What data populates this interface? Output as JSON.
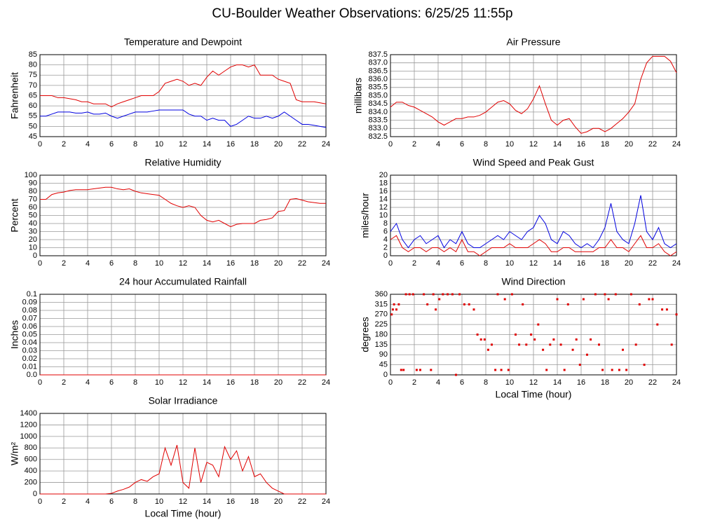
{
  "title": "CU-Boulder Weather Observations: 6/25/25 11:55p",
  "chart_data": [
    {
      "type": "line",
      "title": "Temperature and Dewpoint",
      "ylabel": "Fahrenheit",
      "x": [
        0,
        0.5,
        1,
        1.5,
        2,
        2.5,
        3,
        3.5,
        4,
        4.5,
        5,
        5.5,
        6,
        6.5,
        7,
        7.5,
        8,
        8.5,
        9,
        9.5,
        10,
        10.5,
        11,
        11.5,
        12,
        12.5,
        13,
        13.5,
        14,
        14.5,
        15,
        15.5,
        16,
        16.5,
        17,
        17.5,
        18,
        18.5,
        19,
        19.5,
        20,
        20.5,
        21,
        21.5,
        22,
        22.5,
        23,
        23.5,
        24
      ],
      "series": [
        {
          "color": "#e00000",
          "values": [
            65,
            65,
            65,
            64,
            64,
            63.5,
            63,
            62,
            62,
            61,
            61,
            61,
            59.5,
            61,
            62,
            63,
            64,
            65,
            65,
            65,
            67,
            71,
            72,
            73,
            72,
            70,
            71,
            70,
            74,
            77,
            75,
            77,
            79,
            80,
            80,
            79,
            80,
            75,
            75,
            75,
            73,
            72,
            71,
            63,
            62,
            62,
            62,
            61.5,
            61
          ]
        },
        {
          "color": "#0000e0",
          "values": [
            55,
            55,
            56,
            57,
            57,
            57,
            56.5,
            56.5,
            57,
            56,
            56,
            56.5,
            55,
            54,
            55,
            56,
            57,
            57,
            57,
            57.5,
            58,
            58,
            58,
            58,
            58,
            56,
            55,
            55,
            53,
            54,
            53,
            53,
            50,
            51,
            53,
            55,
            54,
            54,
            55,
            54,
            55,
            57,
            55,
            53,
            51,
            51,
            50.5,
            50,
            49.5
          ]
        }
      ],
      "xlim": [
        0,
        24
      ],
      "xticks": [
        0,
        2,
        4,
        6,
        8,
        10,
        12,
        14,
        16,
        18,
        20,
        22,
        24
      ],
      "ylim": [
        45,
        85
      ],
      "yticks": [
        45,
        50,
        55,
        60,
        65,
        70,
        75,
        80,
        85
      ],
      "grid": true
    },
    {
      "type": "line",
      "title": "Air Pressure",
      "ylabel": "millibars",
      "x": [
        0,
        0.5,
        1,
        1.5,
        2,
        2.5,
        3,
        3.5,
        4,
        4.5,
        5,
        5.5,
        6,
        6.5,
        7,
        7.5,
        8,
        8.5,
        9,
        9.5,
        10,
        10.5,
        11,
        11.5,
        12,
        12.5,
        13,
        13.5,
        14,
        14.5,
        15,
        15.5,
        16,
        16.5,
        17,
        17.5,
        18,
        18.5,
        19,
        19.5,
        20,
        20.5,
        21,
        21.5,
        22,
        22.5,
        23,
        23.5,
        24
      ],
      "series": [
        {
          "color": "#e00000",
          "values": [
            834.3,
            834.6,
            834.6,
            834.4,
            834.3,
            834.1,
            833.9,
            833.7,
            833.4,
            833.2,
            833.4,
            833.6,
            833.6,
            833.7,
            833.7,
            833.8,
            834.0,
            834.3,
            834.6,
            834.7,
            834.5,
            834.1,
            833.9,
            834.2,
            834.8,
            835.6,
            834.5,
            833.5,
            833.2,
            833.5,
            833.6,
            833.1,
            832.7,
            832.8,
            833.0,
            833.0,
            832.8,
            833.0,
            833.3,
            833.6,
            834.0,
            834.5,
            836.0,
            837.0,
            837.4,
            837.4,
            837.4,
            837.1,
            836.4
          ]
        }
      ],
      "xlim": [
        0,
        24
      ],
      "xticks": [
        0,
        2,
        4,
        6,
        8,
        10,
        12,
        14,
        16,
        18,
        20,
        22,
        24
      ],
      "ylim": [
        832.5,
        837.5
      ],
      "yticks": [
        832.5,
        {
          "value": 833,
          "label": "833.0"
        },
        833.5,
        {
          "value": 834,
          "label": "834.0"
        },
        834.5,
        {
          "value": 835,
          "label": "835.0"
        },
        835.5,
        {
          "value": 836,
          "label": "836.0"
        },
        836.5,
        {
          "value": 837,
          "label": "837.0"
        },
        837.5
      ],
      "grid": true
    },
    {
      "type": "line",
      "title": "Relative Humidity",
      "ylabel": "Percent",
      "x": [
        0,
        0.5,
        1,
        1.5,
        2,
        2.5,
        3,
        3.5,
        4,
        4.5,
        5,
        5.5,
        6,
        6.5,
        7,
        7.5,
        8,
        8.5,
        9,
        9.5,
        10,
        10.5,
        11,
        11.5,
        12,
        12.5,
        13,
        13.5,
        14,
        14.5,
        15,
        15.5,
        16,
        16.5,
        17,
        17.5,
        18,
        18.5,
        19,
        19.5,
        20,
        20.5,
        21,
        21.5,
        22,
        22.5,
        23,
        23.5,
        24
      ],
      "series": [
        {
          "color": "#e00000",
          "values": [
            70,
            70,
            76,
            78,
            79,
            81,
            82,
            82,
            82,
            83,
            84,
            85,
            85,
            83,
            82,
            83,
            80,
            78,
            77,
            76,
            75,
            70,
            65,
            62,
            60,
            62,
            60,
            50,
            44,
            42,
            44,
            40,
            36,
            39,
            40,
            40,
            40,
            44,
            45,
            47,
            55,
            56,
            70,
            71,
            69,
            67,
            66,
            65,
            65
          ]
        }
      ],
      "xlim": [
        0,
        24
      ],
      "xticks": [
        0,
        2,
        4,
        6,
        8,
        10,
        12,
        14,
        16,
        18,
        20,
        22,
        24
      ],
      "ylim": [
        0,
        100
      ],
      "yticks": [
        0,
        10,
        20,
        30,
        40,
        50,
        60,
        70,
        80,
        90,
        100
      ],
      "grid": true
    },
    {
      "type": "line",
      "title": "Wind Speed and Peak Gust",
      "ylabel": "miles/hour",
      "x": [
        0,
        0.5,
        1,
        1.5,
        2,
        2.5,
        3,
        3.5,
        4,
        4.5,
        5,
        5.5,
        6,
        6.5,
        7,
        7.5,
        8,
        8.5,
        9,
        9.5,
        10,
        10.5,
        11,
        11.5,
        12,
        12.5,
        13,
        13.5,
        14,
        14.5,
        15,
        15.5,
        16,
        16.5,
        17,
        17.5,
        18,
        18.5,
        19,
        19.5,
        20,
        20.5,
        21,
        21.5,
        22,
        22.5,
        23,
        23.5,
        24
      ],
      "series": [
        {
          "color": "#0000e0",
          "values": [
            6,
            8,
            4,
            2,
            4,
            5,
            3,
            4,
            5,
            2,
            4,
            3,
            6,
            3,
            2,
            2,
            3,
            4,
            5,
            4,
            6,
            5,
            4,
            6,
            7,
            10,
            8,
            4,
            3,
            6,
            5,
            3,
            2,
            3,
            2,
            4,
            7,
            13,
            6,
            4,
            3,
            8,
            15,
            6,
            4,
            7,
            3,
            2,
            3
          ]
        },
        {
          "color": "#e00000",
          "values": [
            4,
            5,
            2,
            1,
            2,
            2,
            1,
            2,
            2,
            1,
            2,
            1,
            4,
            1,
            1,
            0,
            1,
            2,
            2,
            2,
            3,
            2,
            2,
            2,
            3,
            4,
            3,
            1,
            1,
            2,
            2,
            1,
            1,
            1,
            1,
            2,
            2,
            4,
            2,
            2,
            1,
            3,
            5,
            2,
            2,
            3,
            1,
            0,
            1
          ]
        }
      ],
      "xlim": [
        0,
        24
      ],
      "xticks": [
        0,
        2,
        4,
        6,
        8,
        10,
        12,
        14,
        16,
        18,
        20,
        22,
        24
      ],
      "ylim": [
        0,
        20
      ],
      "yticks": [
        0,
        2,
        4,
        6,
        8,
        10,
        12,
        14,
        16,
        18,
        20
      ],
      "grid": true
    },
    {
      "type": "line",
      "title": "24 hour Accumulated Rainfall",
      "ylabel": "Inches",
      "x": [
        0,
        24
      ],
      "series": [
        {
          "color": "#e00000",
          "values": [
            0,
            0
          ]
        }
      ],
      "xlim": [
        0,
        24
      ],
      "xticks": [
        0,
        2,
        4,
        6,
        8,
        10,
        12,
        14,
        16,
        18,
        20,
        22,
        24
      ],
      "ylim": [
        0,
        0.1
      ],
      "yticks": [
        {
          "value": 0,
          "label": "0.0"
        },
        0.01,
        0.02,
        0.03,
        0.04,
        0.05,
        0.06,
        0.07,
        0.08,
        0.09,
        0.1
      ],
      "grid": true
    },
    {
      "type": "scatter",
      "title": "Wind Direction",
      "ylabel": "degrees",
      "xlabel": "Local Time (hour)",
      "x": [
        0.1,
        0.2,
        0.3,
        0.5,
        0.7,
        0.9,
        1.1,
        1.3,
        1.6,
        1.9,
        2.2,
        2.5,
        2.8,
        3.1,
        3.4,
        3.6,
        3.8,
        4.1,
        4.4,
        4.8,
        5.2,
        5.5,
        5.8,
        6.2,
        6.6,
        7.0,
        7.3,
        7.6,
        7.9,
        8.2,
        8.5,
        8.8,
        9.0,
        9.3,
        9.6,
        9.9,
        10.2,
        10.5,
        10.8,
        11.1,
        11.4,
        11.8,
        12.1,
        12.4,
        12.8,
        13.1,
        13.4,
        13.7,
        14.0,
        14.3,
        14.6,
        14.9,
        15.3,
        15.6,
        15.9,
        16.2,
        16.5,
        16.8,
        17.2,
        17.5,
        17.8,
        18.0,
        18.3,
        18.6,
        18.9,
        19.2,
        19.5,
        19.8,
        20.2,
        20.6,
        20.9,
        21.3,
        21.7,
        22.0,
        22.4,
        22.8,
        23.2,
        23.6,
        24
      ],
      "series": [
        {
          "color": "#e00000",
          "values": [
            270,
            292,
            315,
            292,
            315,
            22,
            22,
            360,
            360,
            360,
            22,
            22,
            360,
            315,
            22,
            360,
            292,
            338,
            360,
            360,
            360,
            0,
            360,
            315,
            315,
            292,
            180,
            158,
            158,
            112,
            135,
            22,
            360,
            22,
            338,
            22,
            360,
            180,
            135,
            315,
            135,
            180,
            158,
            225,
            112,
            22,
            135,
            158,
            338,
            135,
            22,
            315,
            112,
            158,
            45,
            338,
            90,
            158,
            360,
            135,
            22,
            360,
            338,
            22,
            360,
            22,
            112,
            22,
            360,
            135,
            315,
            45,
            338,
            338,
            225,
            292,
            292,
            135,
            270
          ]
        }
      ],
      "xlim": [
        0,
        24
      ],
      "xticks": [
        0,
        2,
        4,
        6,
        8,
        10,
        12,
        14,
        16,
        18,
        20,
        22,
        24
      ],
      "ylim": [
        0,
        360
      ],
      "yticks": [
        0,
        45,
        90,
        135,
        180,
        225,
        270,
        315,
        360
      ],
      "grid": true
    },
    {
      "type": "line",
      "title": "Solar Irradiance",
      "ylabel": "W/m²",
      "xlabel": "Local Time (hour)",
      "x": [
        0,
        0.5,
        1,
        1.5,
        2,
        2.5,
        3,
        3.5,
        4,
        4.5,
        5,
        5.5,
        6,
        6.5,
        7,
        7.5,
        8,
        8.5,
        9,
        9.5,
        10,
        10.5,
        11,
        11.5,
        12,
        12.5,
        13,
        13.5,
        14,
        14.5,
        15,
        15.5,
        16,
        16.5,
        17,
        17.5,
        18,
        18.5,
        19,
        19.5,
        20,
        20.5,
        21,
        21.5,
        22,
        22.5,
        23,
        23.5,
        24
      ],
      "series": [
        {
          "color": "#e00000",
          "values": [
            0,
            0,
            0,
            0,
            0,
            0,
            0,
            0,
            0,
            0,
            0,
            0,
            10,
            50,
            80,
            120,
            200,
            250,
            220,
            300,
            350,
            800,
            500,
            850,
            200,
            100,
            800,
            200,
            550,
            500,
            300,
            820,
            600,
            750,
            400,
            650,
            300,
            350,
            200,
            100,
            50,
            0,
            0,
            0,
            0,
            0,
            0,
            0,
            0
          ]
        }
      ],
      "xlim": [
        0,
        24
      ],
      "xticks": [
        0,
        2,
        4,
        6,
        8,
        10,
        12,
        14,
        16,
        18,
        20,
        22,
        24
      ],
      "ylim": [
        0,
        1400
      ],
      "yticks": [
        0,
        200,
        400,
        600,
        800,
        1000,
        1200,
        1400
      ],
      "grid": true
    }
  ]
}
